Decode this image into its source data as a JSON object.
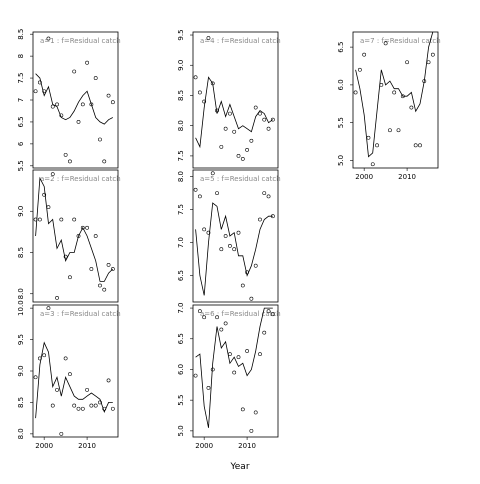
{
  "x_label": "Year",
  "chart_data": [
    {
      "type": "scatter-fit",
      "title": "a=1 : f=Residual catch",
      "x": [
        1998,
        1999,
        2000,
        2001,
        2002,
        2003,
        2004,
        2005,
        2006,
        2007,
        2008,
        2009,
        2010,
        2011,
        2012,
        2013,
        2014,
        2015,
        2016
      ],
      "points": [
        7.2,
        7.4,
        7.2,
        8.4,
        6.85,
        6.9,
        6.65,
        5.75,
        5.6,
        7.65,
        6.5,
        6.9,
        7.85,
        6.9,
        7.5,
        6.1,
        5.6,
        7.1,
        6.95
      ],
      "fitted": [
        7.6,
        7.5,
        7.1,
        7.3,
        6.9,
        6.85,
        6.6,
        6.55,
        6.6,
        6.75,
        6.95,
        7.1,
        7.2,
        6.9,
        6.6,
        6.5,
        6.45,
        6.55,
        6.6
      ],
      "xlim": [
        1997.4,
        2017.2
      ],
      "ylim": [
        5.45,
        8.55
      ],
      "yticks": [
        5.5,
        6,
        6.5,
        7,
        7.5,
        8,
        8.5
      ]
    },
    {
      "type": "scatter-fit",
      "title": "a=2 : f=Residual catch",
      "x": [
        1998,
        1999,
        2000,
        2001,
        2002,
        2003,
        2004,
        2005,
        2006,
        2007,
        2008,
        2009,
        2010,
        2011,
        2012,
        2013,
        2014,
        2015,
        2016
      ],
      "points": [
        8.9,
        8.9,
        9.2,
        9.05,
        9.45,
        7.95,
        8.9,
        8.45,
        8.2,
        8.9,
        8.7,
        8.8,
        8.8,
        8.3,
        8.7,
        8.1,
        8.05,
        8.35,
        8.3
      ],
      "fitted": [
        8.7,
        9.4,
        9.3,
        8.85,
        8.9,
        8.55,
        8.65,
        8.4,
        8.5,
        8.5,
        8.7,
        8.8,
        8.7,
        8.55,
        8.4,
        8.15,
        8.15,
        8.25,
        8.3
      ],
      "xlim": [
        1997.4,
        2017.2
      ],
      "ylim": [
        7.9,
        9.5
      ],
      "yticks": [
        {
          "value": 8,
          "label": "8.0"
        },
        8.5,
        {
          "value": 9,
          "label": "9.0"
        }
      ]
    },
    {
      "type": "scatter-fit",
      "title": "a=3 : f=Residual catch",
      "x": [
        1998,
        1999,
        2000,
        2001,
        2002,
        2003,
        2004,
        2005,
        2006,
        2007,
        2008,
        2009,
        2010,
        2011,
        2012,
        2013,
        2014,
        2015,
        2016
      ],
      "points": [
        8.9,
        9.2,
        9.25,
        10.0,
        8.45,
        8.7,
        8.0,
        9.2,
        8.95,
        8.45,
        8.4,
        8.4,
        8.7,
        8.45,
        8.45,
        8.5,
        8.4,
        8.85,
        8.4
      ],
      "fitted": [
        8.25,
        9.1,
        9.45,
        9.3,
        8.75,
        8.9,
        8.6,
        8.9,
        8.75,
        8.6,
        8.55,
        8.55,
        8.6,
        8.65,
        8.6,
        8.55,
        8.35,
        8.5,
        8.5
      ],
      "xlim": [
        1997.4,
        2017.2
      ],
      "ylim": [
        7.95,
        10.05
      ],
      "yticks": [
        {
          "value": 8,
          "label": "8.0"
        },
        8.5,
        {
          "value": 9,
          "label": "9.0"
        },
        9.5,
        {
          "value": 10,
          "label": "10.0"
        }
      ],
      "xticks": [
        2000,
        2010
      ]
    },
    {
      "type": "scatter-fit",
      "title": "a=4 : f=Residual catch",
      "x": [
        1998,
        1999,
        2000,
        2001,
        2002,
        2003,
        2004,
        2005,
        2006,
        2007,
        2008,
        2009,
        2010,
        2011,
        2012,
        2013,
        2014,
        2015,
        2016
      ],
      "points": [
        8.8,
        8.55,
        8.4,
        9.45,
        8.7,
        8.25,
        7.65,
        7.95,
        8.2,
        7.9,
        7.5,
        7.45,
        7.6,
        7.75,
        8.3,
        8.2,
        8.1,
        7.95,
        8.1
      ],
      "fitted": [
        7.8,
        7.65,
        8.3,
        8.8,
        8.7,
        8.2,
        8.4,
        8.15,
        8.35,
        8.15,
        7.95,
        8.0,
        7.95,
        7.9,
        8.15,
        8.25,
        8.2,
        8.05,
        8.1
      ],
      "xlim": [
        1997.4,
        2017.2
      ],
      "ylim": [
        7.3,
        9.55
      ],
      "yticks": [
        7.5,
        {
          "value": 8,
          "label": "8.0"
        },
        8.5,
        {
          "value": 9,
          "label": "9.0"
        },
        9.5
      ]
    },
    {
      "type": "scatter-fit",
      "title": "a=5 : f=Residual catch",
      "x": [
        1998,
        1999,
        2000,
        2001,
        2002,
        2003,
        2004,
        2005,
        2006,
        2007,
        2008,
        2009,
        2010,
        2011,
        2012,
        2013,
        2014,
        2015,
        2016
      ],
      "points": [
        7.8,
        7.7,
        7.2,
        7.15,
        8.05,
        7.75,
        6.9,
        7.1,
        6.95,
        6.9,
        7.15,
        6.35,
        6.55,
        6.15,
        6.65,
        7.35,
        7.75,
        7.7,
        7.4
      ],
      "fitted": [
        7.2,
        6.5,
        6.2,
        7.0,
        7.6,
        7.55,
        7.2,
        7.4,
        7.1,
        7.15,
        6.8,
        6.8,
        6.5,
        6.65,
        6.9,
        7.2,
        7.35,
        7.4,
        7.4
      ],
      "xlim": [
        1997.4,
        2017.2
      ],
      "ylim": [
        6.1,
        8.1
      ],
      "yticks": [
        6.5,
        {
          "value": 7,
          "label": "7.0"
        },
        7.5,
        {
          "value": 8,
          "label": "8.0"
        }
      ]
    },
    {
      "type": "scatter-fit",
      "title": "a=6 : f=Residual catch",
      "x": [
        1998,
        1999,
        2000,
        2001,
        2002,
        2003,
        2004,
        2005,
        2006,
        2007,
        2008,
        2009,
        2010,
        2011,
        2012,
        2013,
        2014,
        2015,
        2016
      ],
      "points": [
        5.9,
        6.95,
        6.85,
        5.7,
        6.0,
        6.85,
        6.65,
        6.75,
        6.25,
        5.95,
        6.2,
        5.35,
        6.3,
        5.0,
        5.3,
        6.25,
        6.6,
        6.95,
        6.9
      ],
      "fitted": [
        6.2,
        6.25,
        5.4,
        5.05,
        6.1,
        6.7,
        6.35,
        6.45,
        6.1,
        6.2,
        6.05,
        6.1,
        5.9,
        6.0,
        6.3,
        6.7,
        7.0,
        7.0,
        7.0
      ],
      "xlim": [
        1997.4,
        2017.2
      ],
      "ylim": [
        4.9,
        7.05
      ],
      "yticks": [
        {
          "value": 5,
          "label": "5.0"
        },
        5.5,
        {
          "value": 6,
          "label": "6.0"
        },
        6.5,
        {
          "value": 7,
          "label": "7.0"
        }
      ],
      "xticks": [
        2000,
        2010
      ]
    },
    {
      "type": "scatter-fit",
      "title": "a=7 : f=Residual catch",
      "x": [
        1998,
        1999,
        2000,
        2001,
        2002,
        2003,
        2004,
        2005,
        2006,
        2007,
        2008,
        2009,
        2010,
        2011,
        2012,
        2013,
        2014,
        2015,
        2016
      ],
      "points": [
        5.9,
        6.2,
        6.4,
        5.3,
        4.95,
        5.2,
        6.0,
        6.55,
        5.4,
        5.9,
        5.4,
        5.85,
        6.3,
        5.7,
        5.2,
        5.2,
        6.05,
        6.3,
        6.4
      ],
      "fitted": [
        6.2,
        5.95,
        5.6,
        5.05,
        5.1,
        5.65,
        6.2,
        6.0,
        6.05,
        5.95,
        5.95,
        5.85,
        5.85,
        5.9,
        5.65,
        5.75,
        6.05,
        6.5,
        6.7
      ],
      "xlim": [
        1997.4,
        2017.2
      ],
      "ylim": [
        4.9,
        6.7
      ],
      "yticks": [
        {
          "value": 5,
          "label": "5.0"
        },
        5.5,
        {
          "value": 6,
          "label": "6.0"
        },
        6.5
      ],
      "xticks": [
        2000,
        2010
      ]
    }
  ]
}
